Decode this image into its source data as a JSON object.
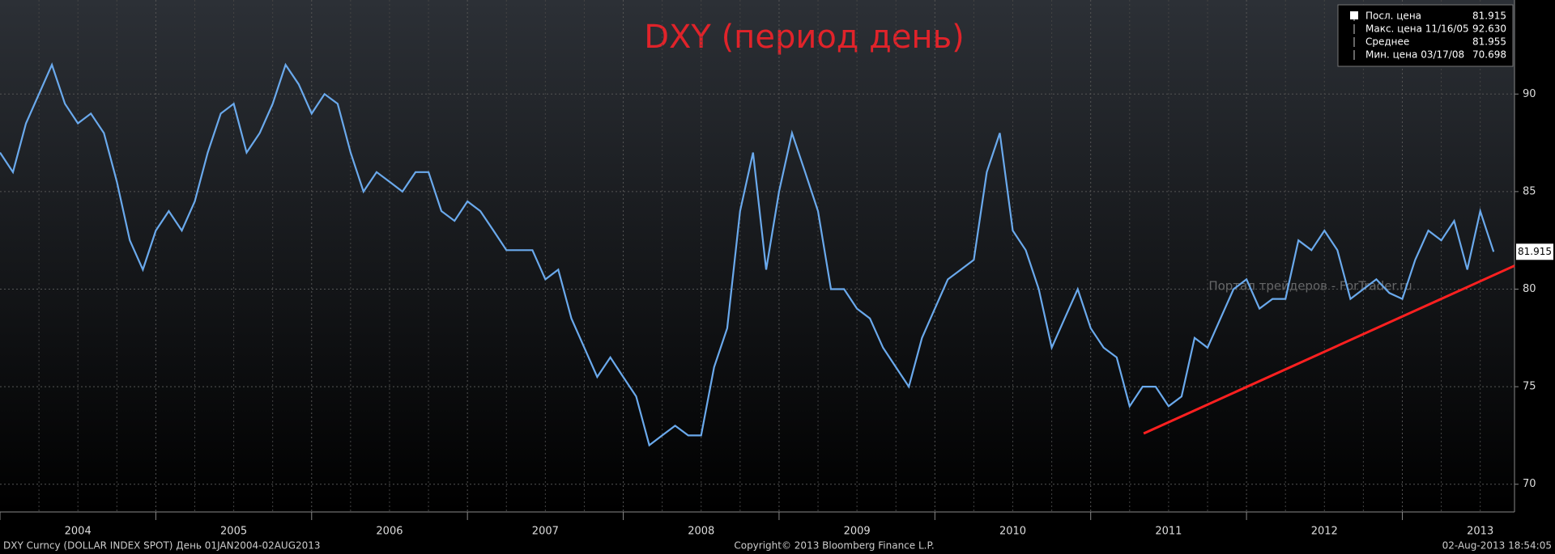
{
  "chart_data": {
    "type": "line",
    "title": "DXY (период день)",
    "title_color": "#e0232a",
    "x": [
      2004,
      2004.083,
      2004.167,
      2004.25,
      2004.333,
      2004.417,
      2004.5,
      2004.583,
      2004.667,
      2004.75,
      2004.833,
      2004.917,
      2005,
      2005.083,
      2005.167,
      2005.25,
      2005.333,
      2005.417,
      2005.5,
      2005.583,
      2005.667,
      2005.75,
      2005.833,
      2005.917,
      2006,
      2006.083,
      2006.167,
      2006.25,
      2006.333,
      2006.417,
      2006.5,
      2006.583,
      2006.667,
      2006.75,
      2006.833,
      2006.917,
      2007,
      2007.083,
      2007.167,
      2007.25,
      2007.333,
      2007.417,
      2007.5,
      2007.583,
      2007.667,
      2007.75,
      2007.833,
      2007.917,
      2008,
      2008.083,
      2008.167,
      2008.25,
      2008.333,
      2008.417,
      2008.5,
      2008.583,
      2008.667,
      2008.75,
      2008.833,
      2008.917,
      2009,
      2009.083,
      2009.167,
      2009.25,
      2009.333,
      2009.417,
      2009.5,
      2009.583,
      2009.667,
      2009.75,
      2009.833,
      2009.917,
      2010,
      2010.083,
      2010.167,
      2010.25,
      2010.333,
      2010.417,
      2010.5,
      2010.583,
      2010.667,
      2010.75,
      2010.833,
      2010.917,
      2011,
      2011.083,
      2011.167,
      2011.25,
      2011.333,
      2011.417,
      2011.5,
      2011.583,
      2011.667,
      2011.75,
      2011.833,
      2011.917,
      2012,
      2012.083,
      2012.167,
      2012.25,
      2012.333,
      2012.417,
      2012.5,
      2012.583,
      2012.667,
      2012.75,
      2012.833,
      2012.917,
      2013,
      2013.083,
      2013.167,
      2013.25,
      2013.333,
      2013.417,
      2013.5,
      2013.586
    ],
    "series": [
      {
        "name": "Посл. цена",
        "color": "#6aa9ec",
        "values": [
          87,
          86,
          88.5,
          90,
          91.5,
          89.5,
          88.5,
          89,
          88,
          85.5,
          82.5,
          81,
          83,
          84,
          83,
          84.5,
          87,
          89,
          89.5,
          87,
          88,
          89.5,
          91.5,
          90.5,
          89,
          90,
          89.5,
          87,
          85,
          86,
          85.5,
          85,
          86,
          86,
          84,
          83.5,
          84.5,
          84,
          83,
          82,
          82,
          82,
          80.5,
          81,
          78.5,
          77,
          75.5,
          76.5,
          75.5,
          74.5,
          72,
          72.5,
          73,
          72.5,
          72.5,
          76,
          78,
          84,
          87,
          81,
          85,
          88,
          86,
          84,
          80,
          80,
          79,
          78.5,
          77,
          76,
          75,
          77.5,
          79,
          80.5,
          81,
          81.5,
          86,
          88,
          83,
          82,
          80,
          77,
          78.5,
          80,
          78,
          77,
          76.5,
          74,
          75,
          75,
          74,
          74.5,
          77.5,
          77,
          78.5,
          80,
          80.5,
          79,
          79.5,
          79.5,
          82.5,
          82,
          83,
          82,
          79.5,
          80,
          80.5,
          79.8,
          79.5,
          81.5,
          83,
          82.5,
          83.5,
          81,
          84,
          81.915
        ]
      }
    ],
    "xlim": [
      2004,
      2013.72
    ],
    "ylim": [
      68.58,
      94.82
    ],
    "xticks": [
      {
        "value": 2004,
        "label": "2004"
      },
      {
        "value": 2005,
        "label": "2005"
      },
      {
        "value": 2006,
        "label": "2006"
      },
      {
        "value": 2007,
        "label": "2007"
      },
      {
        "value": 2008,
        "label": "2008"
      },
      {
        "value": 2009,
        "label": "2009"
      },
      {
        "value": 2010,
        "label": "2010"
      },
      {
        "value": 2011,
        "label": "2011"
      },
      {
        "value": 2012,
        "label": "2012"
      },
      {
        "value": 2013,
        "label": "2013"
      }
    ],
    "yticks": [
      70,
      75,
      80,
      85,
      90
    ],
    "grid": true,
    "trendline": {
      "x": [
        2011.34,
        2013.72
      ],
      "values": [
        72.6,
        81.2
      ],
      "color": "#ff2020"
    },
    "last_value_label": "81.915",
    "stats": {
      "labels": [
        "Посл. цена",
        "Макс. цена 11/16/05",
        "Среднее",
        "Мин. цена 03/17/08"
      ],
      "values": [
        81.915,
        92.63,
        81.955,
        70.698
      ],
      "value_labels": [
        "81.915",
        "92.630",
        "81.955",
        "70.698"
      ]
    },
    "watermark": "Портал трейдеров - ForTrader.ru",
    "footer_left": "DXY Curncy (DOLLAR INDEX SPOT)  День 01JAN2004-02AUG2013",
    "footer_center": "Copyright© 2013 Bloomberg Finance L.P.",
    "footer_right": "02-Aug-2013 18:54:05"
  }
}
